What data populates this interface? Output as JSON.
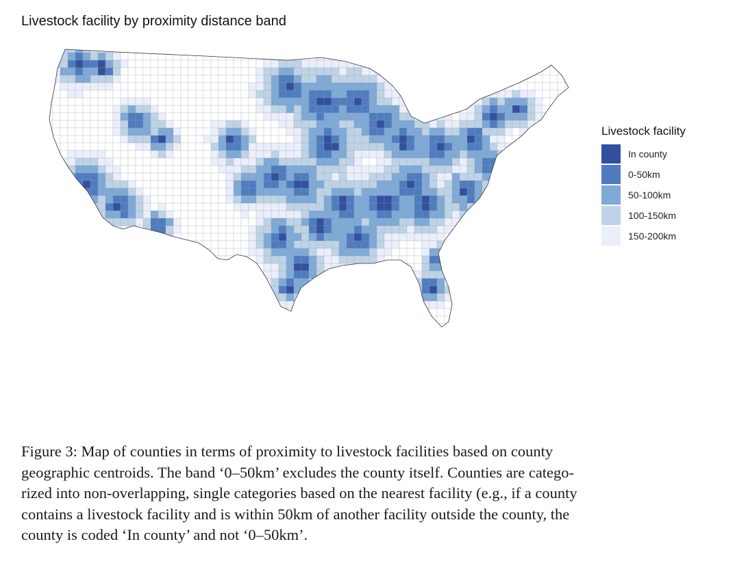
{
  "title": "Livestock facility by proximity distance band",
  "legend": {
    "title": "Livestock facility",
    "items": [
      {
        "label": "In county",
        "color": "#33509e"
      },
      {
        "label": "0-50km",
        "color": "#4f7cbf"
      },
      {
        "label": "50-100km",
        "color": "#7fa9d6"
      },
      {
        "label": "100-150km",
        "color": "#bfd3e6"
      },
      {
        "label": "150-200km",
        "color": "#ebeefb"
      }
    ]
  },
  "caption": {
    "lines": [
      "Figure 3:  Map of counties in terms of proximity to livestock facilities based on county",
      "geographic centroids. The band ‘0–50km’ excludes the county itself. Counties are catego-",
      "rized into non-overlapping, single categories based on the nearest facility (e.g., if a county",
      "contains a livestock facility and is within 50km of another facility outside the county, the",
      "county is coded ‘In county’ and not ‘0–50km’."
    ]
  }
}
